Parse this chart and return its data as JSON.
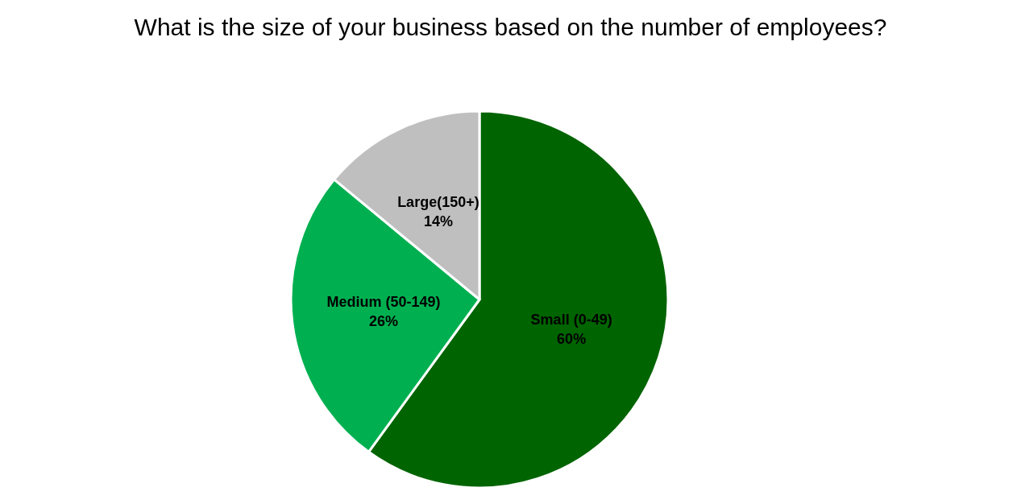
{
  "chart_data": {
    "type": "pie",
    "title": "What is the size of your business based on the number of employees?",
    "categories": [
      "Small (0-49)",
      "Medium (50-149)",
      "Large(150+)"
    ],
    "values": [
      60,
      26,
      14
    ],
    "value_labels": [
      "60%",
      "26%",
      "14%"
    ],
    "colors": [
      "#006400",
      "#00b050",
      "#bfbfbf"
    ],
    "legend": false
  }
}
